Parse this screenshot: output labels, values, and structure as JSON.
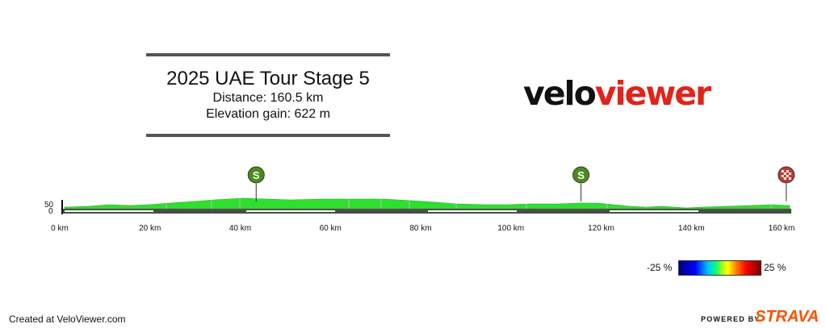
{
  "header": {
    "title": "2025 UAE Tour Stage 5",
    "distance_label": "Distance: 160.5 km",
    "elevation_label": "Elevation gain: 622 m"
  },
  "logo": {
    "part1": "velo",
    "part2": "viewer"
  },
  "profile": {
    "y_ticks": [
      "50",
      "0"
    ],
    "x_ticks": [
      "0 km",
      "20 km",
      "40 km",
      "60 km",
      "80 km",
      "100 km",
      "120 km",
      "140 km",
      "160 km"
    ],
    "markers": [
      {
        "label": "S",
        "type": "sprint",
        "km": 43
      },
      {
        "label": "S",
        "type": "sprint",
        "km": 115
      },
      {
        "label": "",
        "type": "finish",
        "km": 160.5
      }
    ]
  },
  "legend": {
    "low": "-25 %",
    "high": "25 %"
  },
  "footer": {
    "created": "Created at VeloViewer.com",
    "powered": "POWERED BY",
    "brand": "STRAVA"
  },
  "colors": {
    "accent": "#e2231a",
    "strava": "#fc5200",
    "sprint": "#4b8a1e",
    "finish": "#c0392b"
  }
}
